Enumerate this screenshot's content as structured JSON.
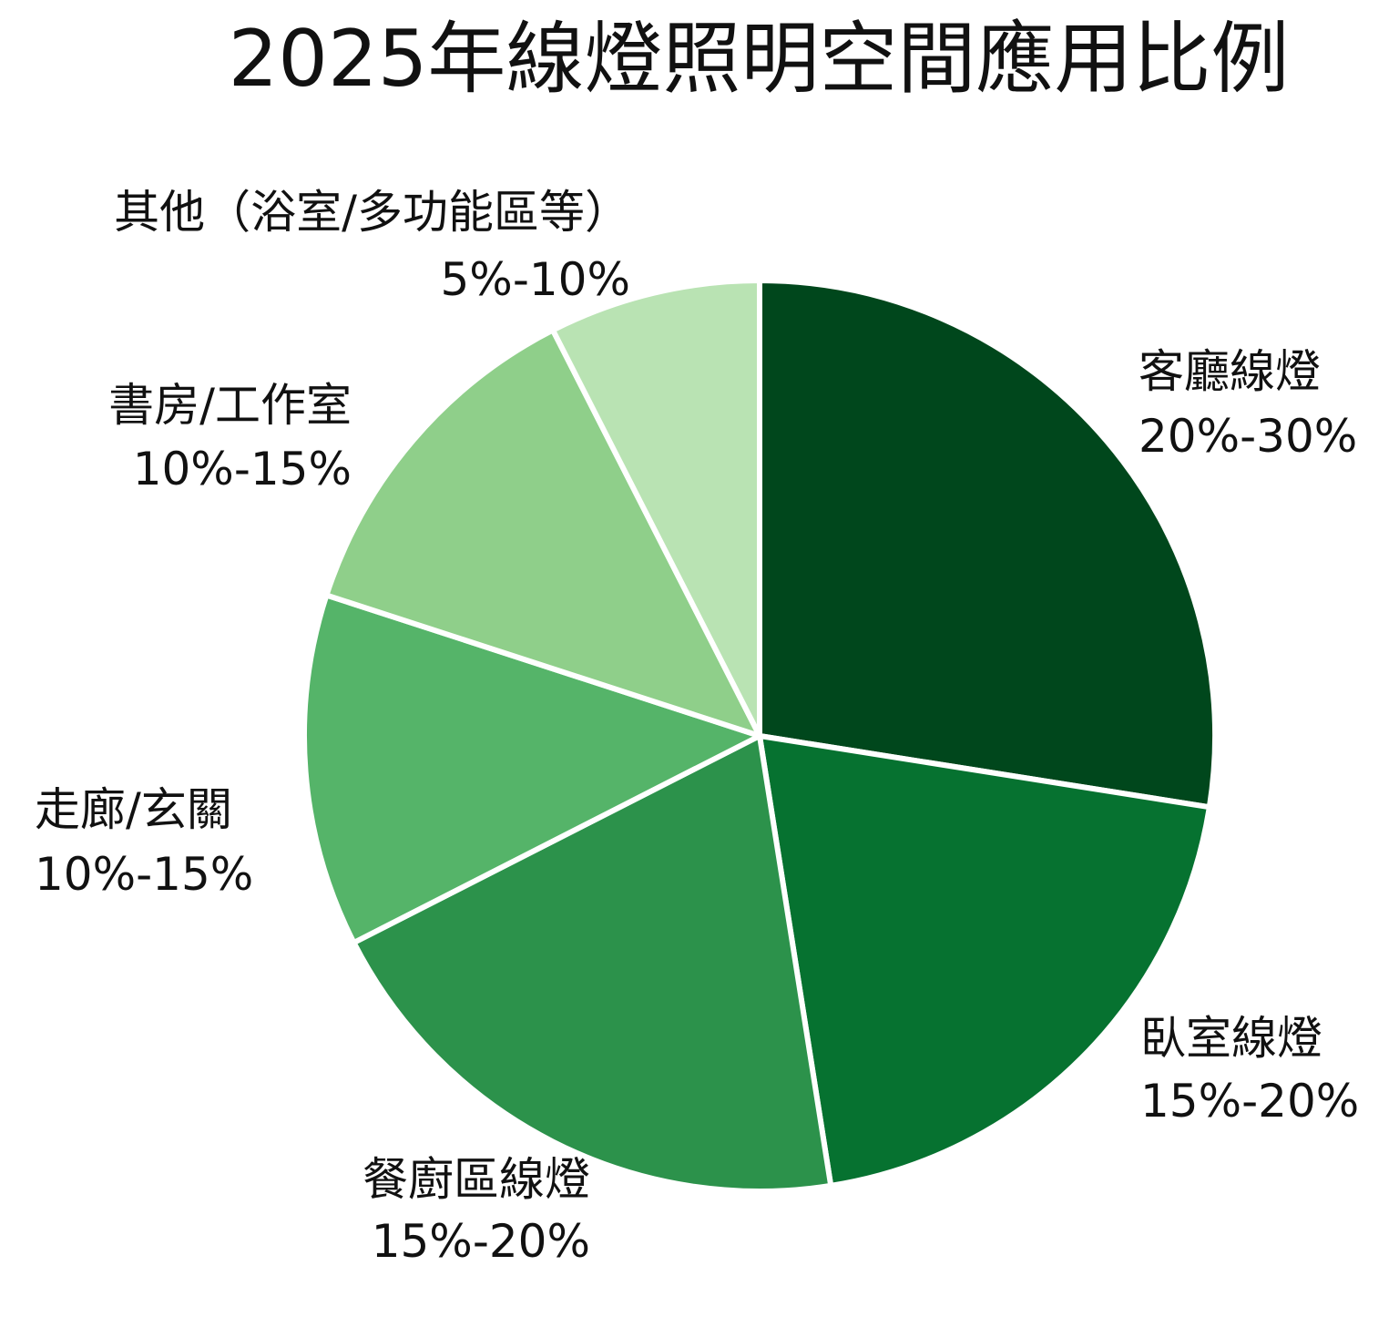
{
  "chart_data": {
    "type": "pie",
    "title": "2025年線燈照明空間應用比例",
    "start_angle_deg": 0,
    "direction": "clockwise",
    "slices": [
      {
        "name": "客廳線燈",
        "range_label": "20%-30%",
        "value": 27.5,
        "color": "#00471c"
      },
      {
        "name": "臥室線燈",
        "range_label": "15%-20%",
        "value": 20.0,
        "color": "#067230"
      },
      {
        "name": "餐廚區線燈",
        "range_label": "15%-20%",
        "value": 20.0,
        "color": "#2c924b"
      },
      {
        "name": "走廊/玄關",
        "range_label": "10%-15%",
        "value": 12.5,
        "color": "#55b469"
      },
      {
        "name": "書房/工作室",
        "range_label": "10%-15%",
        "value": 12.5,
        "color": "#8fcf8a"
      },
      {
        "name": "其他（浴室/多功能區等）",
        "range_label": "5%-10%",
        "value": 7.5,
        "color": "#b9e3b3"
      }
    ],
    "legend": "none"
  }
}
